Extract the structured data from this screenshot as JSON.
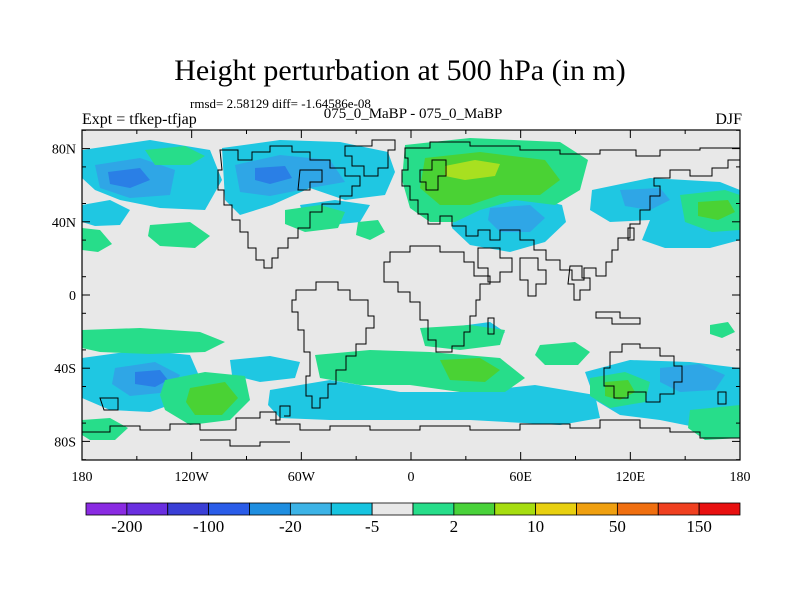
{
  "title": "Height perturbation at 500 hPa (in m)",
  "stats": "rmsd= 2.58129 diff= -1.64586e-08",
  "left_string": "Expt = tfkep-tfjap",
  "center_string": "075_0_MaBP - 075_0_MaBP",
  "right_string": "DJF",
  "lat_ticks": [
    {
      "lat": 80,
      "label": "80N"
    },
    {
      "lat": 40,
      "label": "40N"
    },
    {
      "lat": 0,
      "label": "0"
    },
    {
      "lat": -40,
      "label": "40S"
    },
    {
      "lat": -80,
      "label": "80S"
    }
  ],
  "lon_ticks": [
    {
      "lon": -180,
      "label": "180"
    },
    {
      "lon": -120,
      "label": "120W"
    },
    {
      "lon": -60,
      "label": "60W"
    },
    {
      "lon": 0,
      "label": "0"
    },
    {
      "lon": 60,
      "label": "60E"
    },
    {
      "lon": 120,
      "label": "120E"
    },
    {
      "lon": 180,
      "label": "180"
    }
  ],
  "colorbar": {
    "colors": [
      "#8a2be2",
      "#6a2fe0",
      "#3a3fd6",
      "#2a5ce8",
      "#1f8ee0",
      "#3cb3e6",
      "#17c4e0",
      "#e8e8e8",
      "#27dd8a",
      "#49d23a",
      "#a6dd10",
      "#e8d010",
      "#f0a010",
      "#f06f10",
      "#f04020",
      "#e81010"
    ],
    "labels": [
      "-200",
      "-100",
      "-20",
      "-5",
      "2",
      "10",
      "50",
      "150"
    ]
  },
  "colors": {
    "neg_light": "#1fc7e2",
    "neg_mid": "#2fa6e6",
    "neg_dark": "#2a7fe6",
    "pos_light": "#27dd8a",
    "pos_mid": "#4ad234",
    "pos_strong": "#a8e020",
    "background": "#e8e8e8"
  }
}
